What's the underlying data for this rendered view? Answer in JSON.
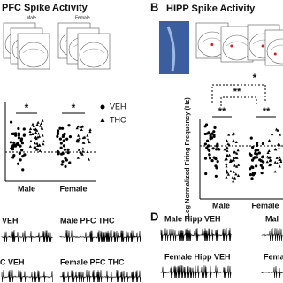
{
  "panel_a": {
    "title": "PFC Spike Activity",
    "header_labels": [
      "Male",
      "Female"
    ],
    "legend": [
      "VEH",
      "THC"
    ],
    "significance": [
      "*",
      "*"
    ],
    "x_labels": [
      "Male",
      "Female"
    ]
  },
  "panel_b": {
    "letter": "B",
    "title": "HIPP Spike Activity",
    "y_label": "Log Normalized Firing Frequency (Hz)",
    "significance": [
      "*",
      "**",
      "**",
      "**"
    ],
    "x_labels": [
      "Male",
      "Female"
    ]
  },
  "panel_c": {
    "traces": [
      "VEH",
      "Male PFC THC",
      "C VEH",
      "Female PFC THC"
    ]
  },
  "panel_d": {
    "letter": "D",
    "traces": [
      "Male Hipp VEH",
      "Mal",
      "Female Hipp VEH",
      "Fema"
    ]
  }
}
